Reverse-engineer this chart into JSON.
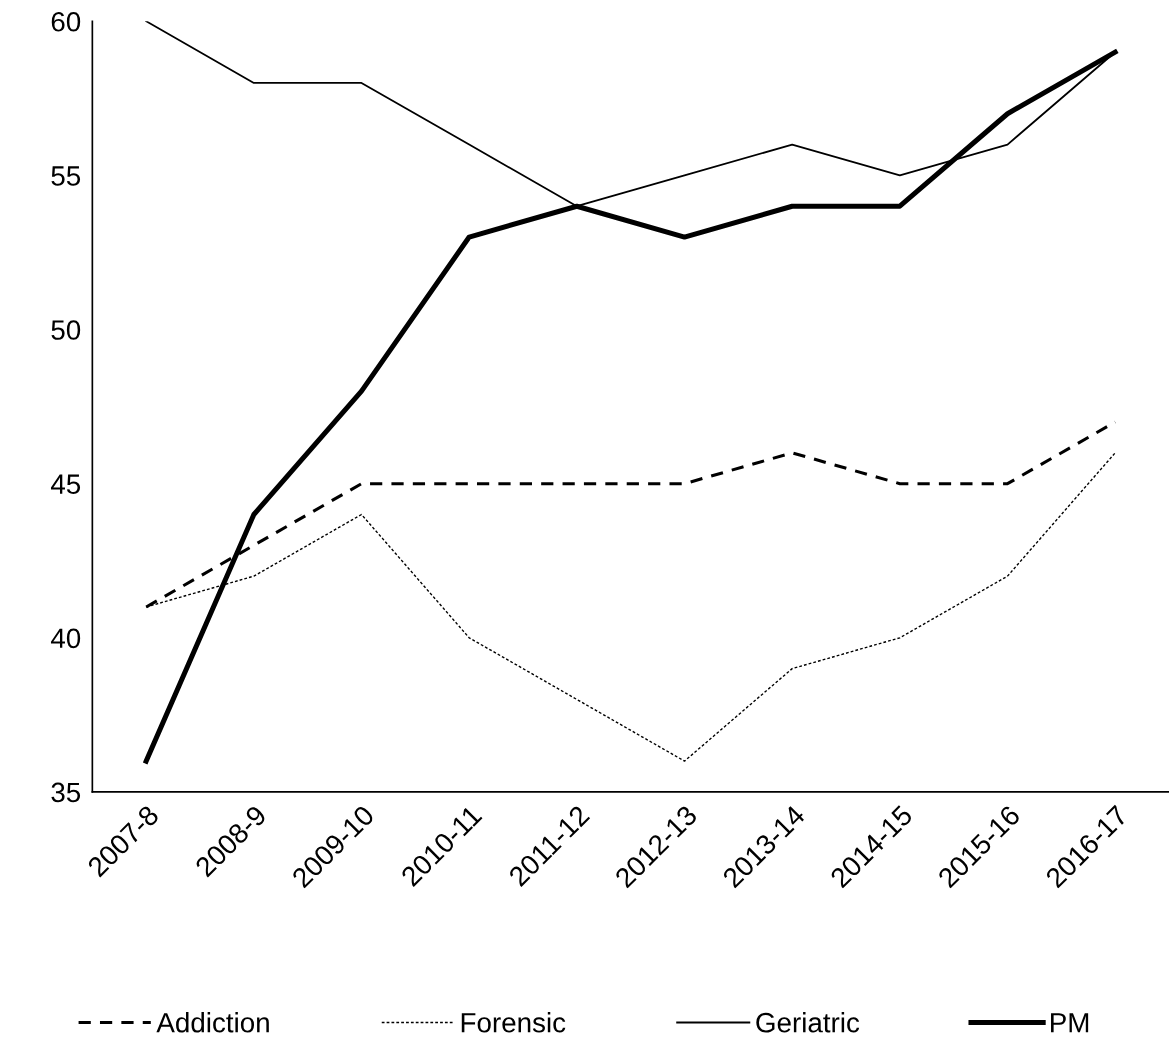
{
  "chart_data": {
    "type": "line",
    "categories": [
      "2007-8",
      "2008-9",
      "2009-10",
      "2010-11",
      "2011-12",
      "2012-13",
      "2013-14",
      "2014-15",
      "2015-16",
      "2016-17"
    ],
    "series": [
      {
        "name": "Addiction",
        "color": "#000000",
        "line_style": "dashed",
        "values": [
          41,
          43,
          45,
          45,
          45,
          45,
          46,
          45,
          45,
          47
        ]
      },
      {
        "name": "Forensic",
        "color": "#000000",
        "line_style": "dotted",
        "values": [
          41,
          42,
          44,
          40,
          38,
          36,
          39,
          40,
          42,
          46
        ]
      },
      {
        "name": "Geriatric",
        "color": "#000000",
        "line_style": "solid",
        "values": [
          60,
          58,
          58,
          56,
          54,
          55,
          56,
          55,
          56,
          59
        ]
      },
      {
        "name": "PM",
        "color": "#000000",
        "line_style": "solid",
        "values": [
          36,
          44,
          48,
          53,
          54,
          53,
          54,
          54,
          57,
          59
        ]
      }
    ],
    "ylim": [
      35,
      60
    ],
    "yticks": [
      35,
      40,
      45,
      50,
      55,
      60
    ],
    "grid": false,
    "legend": "bottom",
    "marker": "none"
  }
}
